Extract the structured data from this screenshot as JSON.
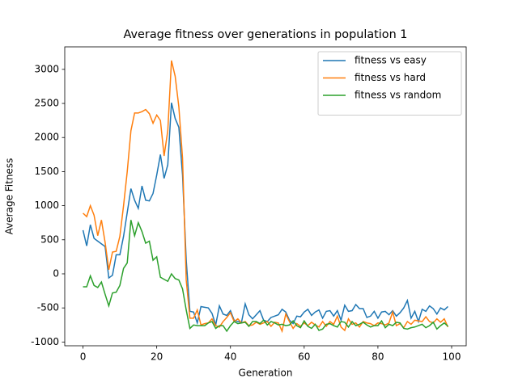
{
  "chart_data": {
    "type": "line",
    "title": "Average fitness over generations in population 1",
    "xlabel": "Generation",
    "ylabel": "Average Fitness",
    "x": [
      0,
      1,
      2,
      3,
      4,
      5,
      6,
      7,
      8,
      9,
      10,
      11,
      12,
      13,
      14,
      15,
      16,
      17,
      18,
      19,
      20,
      21,
      22,
      23,
      24,
      25,
      26,
      27,
      28,
      29,
      30,
      31,
      32,
      33,
      34,
      35,
      36,
      37,
      38,
      39,
      40,
      41,
      42,
      43,
      44,
      45,
      46,
      47,
      48,
      49,
      50,
      51,
      52,
      53,
      54,
      55,
      56,
      57,
      58,
      59,
      60,
      61,
      62,
      63,
      64,
      65,
      66,
      67,
      68,
      69,
      70,
      71,
      72,
      73,
      74,
      75,
      76,
      77,
      78,
      79,
      80,
      81,
      82,
      83,
      84,
      85,
      86,
      87,
      88,
      89,
      90,
      91,
      92,
      93,
      94,
      95,
      96,
      97,
      98,
      99
    ],
    "series": [
      {
        "name": "fitness vs easy",
        "color": "#1f77b4",
        "values": [
          640,
          410,
          720,
          520,
          480,
          440,
          400,
          -60,
          -20,
          280,
          280,
          550,
          900,
          1250,
          1080,
          960,
          1290,
          1080,
          1070,
          1180,
          1450,
          1750,
          1400,
          1600,
          2510,
          2280,
          2150,
          1450,
          200,
          -550,
          -560,
          -720,
          -480,
          -490,
          -500,
          -580,
          -750,
          -470,
          -590,
          -610,
          -540,
          -680,
          -700,
          -710,
          -440,
          -600,
          -660,
          -600,
          -540,
          -680,
          -700,
          -640,
          -620,
          -600,
          -520,
          -560,
          -680,
          -730,
          -620,
          -630,
          -560,
          -520,
          -610,
          -560,
          -530,
          -650,
          -550,
          -540,
          -620,
          -540,
          -680,
          -460,
          -550,
          -540,
          -450,
          -510,
          -510,
          -640,
          -620,
          -550,
          -650,
          -560,
          -550,
          -600,
          -540,
          -620,
          -570,
          -500,
          -390,
          -650,
          -550,
          -700,
          -520,
          -550,
          -470,
          -510,
          -590,
          -500,
          -530,
          -480
        ]
      },
      {
        "name": "fitness vs hard",
        "color": "#ff7f0e",
        "values": [
          890,
          840,
          1000,
          860,
          560,
          790,
          460,
          60,
          320,
          330,
          550,
          1000,
          1500,
          2100,
          2360,
          2360,
          2380,
          2410,
          2350,
          2210,
          2330,
          2250,
          1730,
          2100,
          3130,
          2900,
          2450,
          1700,
          -90,
          -650,
          -650,
          -530,
          -750,
          -730,
          -720,
          -660,
          -760,
          -780,
          -700,
          -640,
          -570,
          -700,
          -660,
          -720,
          -700,
          -760,
          -750,
          -710,
          -740,
          -720,
          -700,
          -770,
          -710,
          -720,
          -840,
          -590,
          -700,
          -800,
          -730,
          -770,
          -720,
          -760,
          -710,
          -750,
          -780,
          -700,
          -770,
          -700,
          -740,
          -620,
          -780,
          -830,
          -660,
          -740,
          -720,
          -780,
          -700,
          -720,
          -730,
          -760,
          -720,
          -730,
          -750,
          -720,
          -560,
          -760,
          -730,
          -790,
          -700,
          -740,
          -680,
          -690,
          -700,
          -630,
          -700,
          -720,
          -660,
          -710,
          -660,
          -780
        ]
      },
      {
        "name": "fitness vs random",
        "color": "#2ca02c",
        "values": [
          -190,
          -190,
          -30,
          -170,
          -200,
          -120,
          -300,
          -470,
          -280,
          -270,
          -170,
          80,
          160,
          790,
          560,
          750,
          620,
          450,
          480,
          200,
          250,
          -50,
          -80,
          -110,
          0,
          -70,
          -90,
          -220,
          -530,
          -800,
          -750,
          -760,
          -760,
          -760,
          -720,
          -700,
          -800,
          -760,
          -760,
          -840,
          -760,
          -700,
          -730,
          -720,
          -710,
          -770,
          -700,
          -700,
          -730,
          -680,
          -750,
          -700,
          -720,
          -750,
          -740,
          -760,
          -750,
          -690,
          -760,
          -790,
          -690,
          -770,
          -800,
          -740,
          -830,
          -810,
          -740,
          -730,
          -760,
          -780,
          -700,
          -710,
          -780,
          -700,
          -760,
          -740,
          -710,
          -750,
          -780,
          -760,
          -760,
          -690,
          -790,
          -740,
          -760,
          -710,
          -720,
          -800,
          -810,
          -790,
          -780,
          -760,
          -740,
          -790,
          -760,
          -710,
          -810,
          -760,
          -720,
          -770
        ]
      }
    ],
    "xlim": [
      -4.95,
      103.95
    ],
    "ylim": [
      -1055,
      3330
    ],
    "xticks": [
      0,
      20,
      40,
      60,
      80,
      100
    ],
    "yticks": [
      -1000,
      -500,
      0,
      500,
      1000,
      1500,
      2000,
      2500,
      3000
    ],
    "legend": "upper right",
    "grid": false
  }
}
